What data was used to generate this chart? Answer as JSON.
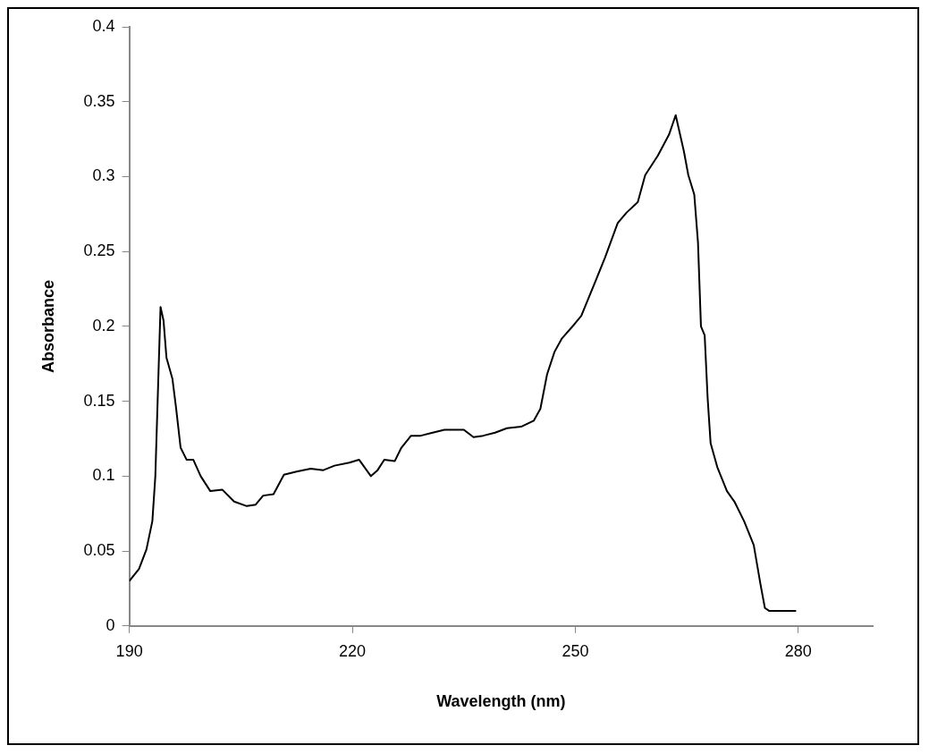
{
  "chart_data": {
    "type": "line",
    "xlabel": "Wavelength (nm)",
    "ylabel": "Absorbance",
    "xlim": [
      190,
      290
    ],
    "xticks": [
      190,
      220,
      250,
      280
    ],
    "ylim": [
      0,
      0.4
    ],
    "yticks": [
      0,
      0.05,
      0.1,
      0.15,
      0.2,
      0.25,
      0.3,
      0.35,
      0.4
    ],
    "grid": false,
    "legend": false,
    "marker": "none",
    "line_style": "solid",
    "x": [
      190,
      191.3,
      192.3,
      193.1,
      193.5,
      193.9,
      194.2,
      194.6,
      195,
      195.8,
      196.3,
      196.9,
      197.7,
      198.6,
      199.6,
      200.9,
      202.5,
      204.1,
      205.8,
      207,
      208,
      209.4,
      210.8,
      212.5,
      214.4,
      216.1,
      217.6,
      219.6,
      220.9,
      222.5,
      223.4,
      224.3,
      225.7,
      226.6,
      227.9,
      229.2,
      230.8,
      232.4,
      235,
      236.3,
      237.6,
      239.2,
      240.8,
      242.7,
      244.4,
      245.3,
      246.2,
      247.2,
      248.2,
      249.8,
      250.8,
      252.7,
      254,
      255.7,
      256.9,
      258.4,
      259.4,
      261.1,
      262.6,
      263.5,
      264.6,
      265.2,
      266,
      266.5,
      266.9,
      267.4,
      267.8,
      268.2,
      269.1,
      270.4,
      271.4,
      272.7,
      274,
      274.9,
      275.5,
      276.1,
      279.7
    ],
    "series": [
      {
        "color": "#000000",
        "values": [
          0.03,
          0.038,
          0.051,
          0.07,
          0.1,
          0.165,
          0.213,
          0.204,
          0.179,
          0.165,
          0.145,
          0.119,
          0.111,
          0.111,
          0.1,
          0.09,
          0.091,
          0.083,
          0.08,
          0.081,
          0.087,
          0.088,
          0.101,
          0.103,
          0.105,
          0.104,
          0.107,
          0.109,
          0.111,
          0.1,
          0.104,
          0.111,
          0.11,
          0.119,
          0.127,
          0.127,
          0.129,
          0.131,
          0.131,
          0.126,
          0.127,
          0.129,
          0.132,
          0.133,
          0.137,
          0.145,
          0.168,
          0.183,
          0.192,
          0.201,
          0.207,
          0.23,
          0.246,
          0.269,
          0.276,
          0.283,
          0.301,
          0.314,
          0.328,
          0.341,
          0.317,
          0.301,
          0.288,
          0.256,
          0.2,
          0.194,
          0.152,
          0.122,
          0.106,
          0.09,
          0.083,
          0.07,
          0.054,
          0.028,
          0.012,
          0.01,
          0.01
        ]
      }
    ]
  }
}
